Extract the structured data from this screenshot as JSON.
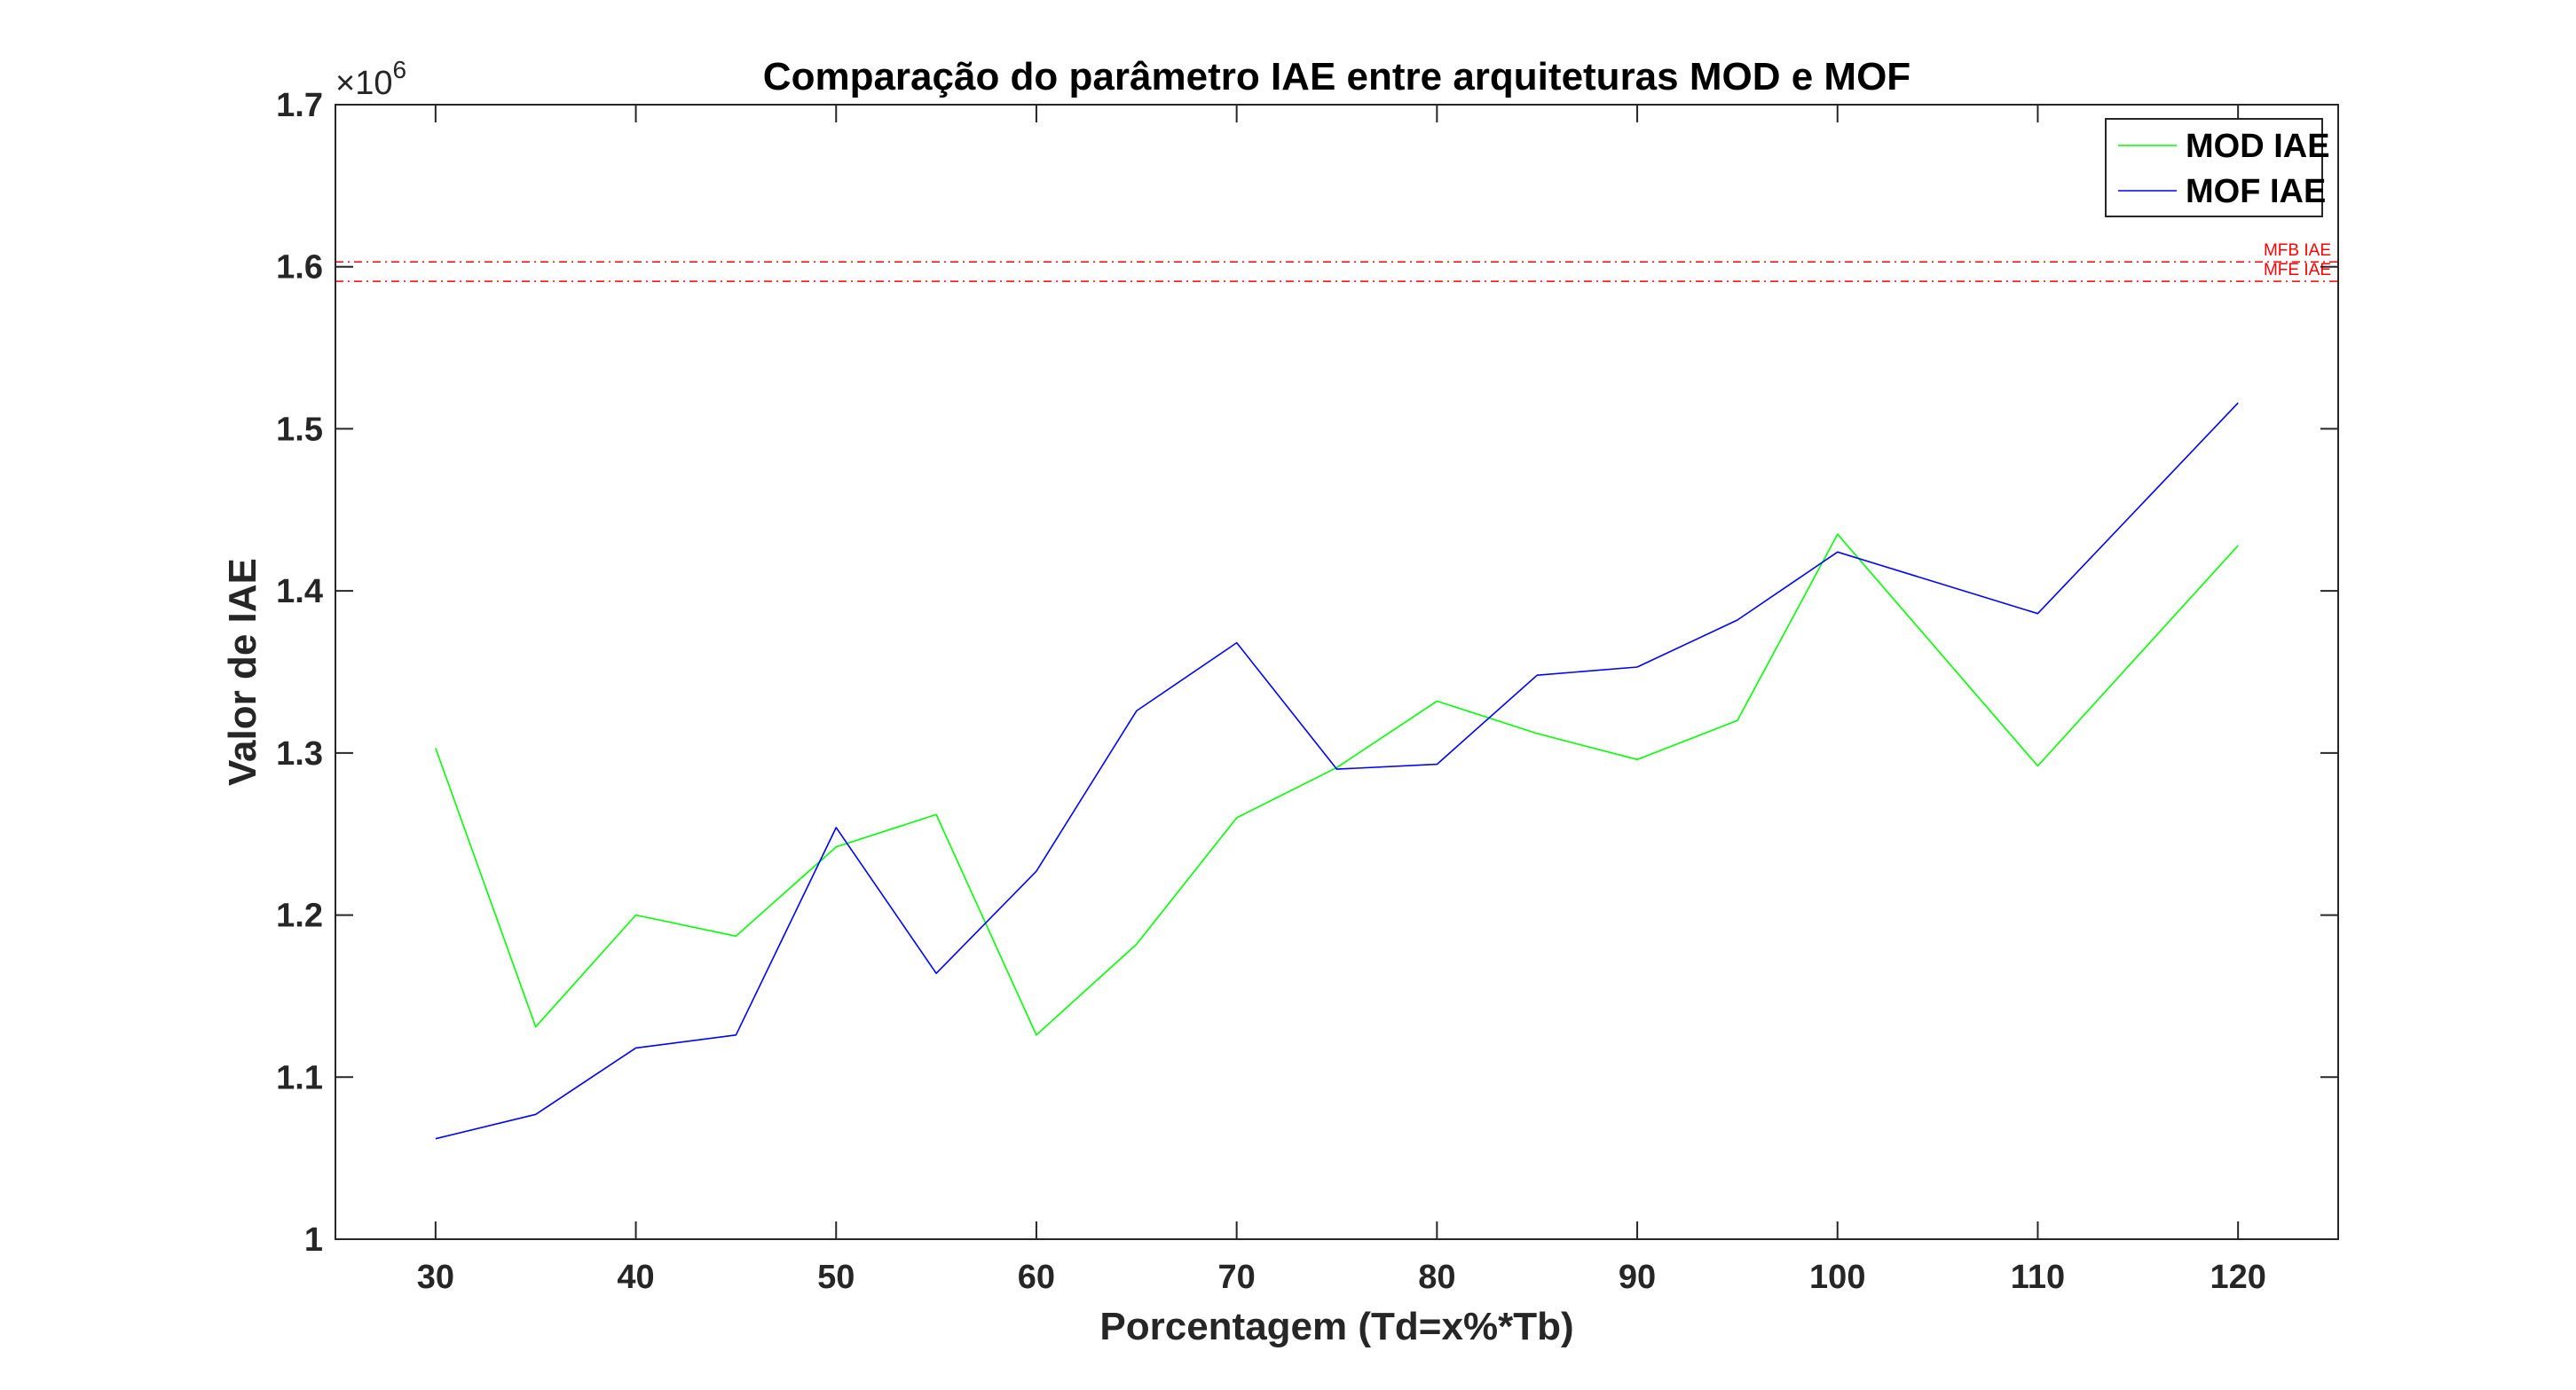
{
  "chart_data": {
    "type": "line",
    "title": "Comparação do parâmetro IAE entre arquiteturas MOD e MOF",
    "xlabel": "Porcentagem (Td=x%*Tb)",
    "ylabel": "Valor de IAE",
    "y_exponent_base": "×10",
    "y_exponent_power": "6",
    "xlim": [
      25,
      125
    ],
    "ylim": [
      1.0,
      1.7
    ],
    "xticks": [
      30,
      40,
      50,
      60,
      70,
      80,
      90,
      100,
      110,
      120
    ],
    "xtick_labels": [
      "30",
      "40",
      "50",
      "60",
      "70",
      "80",
      "90",
      "100",
      "110",
      "120"
    ],
    "yticks": [
      1.0,
      1.1,
      1.2,
      1.3,
      1.4,
      1.5,
      1.6,
      1.7
    ],
    "ytick_labels": [
      "1",
      "1.1",
      "1.2",
      "1.3",
      "1.4",
      "1.5",
      "1.6",
      "1.7"
    ],
    "x": [
      30,
      35,
      40,
      45,
      50,
      55,
      60,
      65,
      70,
      75,
      80,
      85,
      90,
      95,
      100,
      110,
      120
    ],
    "series": [
      {
        "name": "MOD IAE",
        "color": "#00ff00",
        "values": [
          1.303,
          1.131,
          1.2,
          1.187,
          1.242,
          1.262,
          1.126,
          1.182,
          1.26,
          1.291,
          1.332,
          1.312,
          1.296,
          1.32,
          1.435,
          1.292,
          1.428
        ]
      },
      {
        "name": "MOF IAE",
        "color": "#0000ff",
        "values": [
          1.062,
          1.077,
          1.118,
          1.126,
          1.254,
          1.164,
          1.227,
          1.326,
          1.368,
          1.29,
          1.293,
          1.348,
          1.353,
          1.382,
          1.424,
          1.386,
          1.516
        ]
      }
    ],
    "reference_lines": [
      {
        "name": "MFB IAE",
        "value": 1.603,
        "color": "#ff0000",
        "style": "dash-dot"
      },
      {
        "name": "MFE IAE",
        "value": 1.591,
        "color": "#ff0000",
        "style": "dash-dot"
      }
    ],
    "legend": {
      "position": "top-right"
    },
    "grid": false
  }
}
